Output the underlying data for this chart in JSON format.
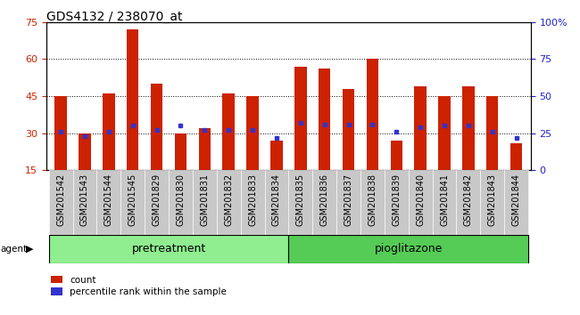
{
  "title": "GDS4132 / 238070_at",
  "samples": [
    "GSM201542",
    "GSM201543",
    "GSM201544",
    "GSM201545",
    "GSM201829",
    "GSM201830",
    "GSM201831",
    "GSM201832",
    "GSM201833",
    "GSM201834",
    "GSM201835",
    "GSM201836",
    "GSM201837",
    "GSM201838",
    "GSM201839",
    "GSM201840",
    "GSM201841",
    "GSM201842",
    "GSM201843",
    "GSM201844"
  ],
  "counts": [
    45,
    30,
    46,
    72,
    50,
    30,
    32,
    46,
    45,
    27,
    57,
    56,
    48,
    60,
    27,
    49,
    45,
    49,
    45,
    26
  ],
  "percentile_ranks": [
    26,
    23,
    26,
    30,
    27,
    30,
    27,
    27,
    27,
    22,
    32,
    31,
    31,
    31,
    26,
    29,
    30,
    30,
    26,
    22
  ],
  "bar_color": "#CC2200",
  "blue_color": "#3333CC",
  "ylim_left": [
    15,
    75
  ],
  "ylim_right": [
    0,
    100
  ],
  "yticks_left": [
    15,
    30,
    45,
    60,
    75
  ],
  "yticks_right": [
    0,
    25,
    50,
    75,
    100
  ],
  "bar_width": 0.5,
  "legend_count_label": "count",
  "legend_pct_label": "percentile rank within the sample",
  "tick_bg_color": "#c8c8c8",
  "pre_color": "#90EE90",
  "piog_color": "#55CC55",
  "group_border_color": "#000000",
  "title_fontsize": 10,
  "tick_fontsize": 7,
  "group_fontsize": 9,
  "legend_fontsize": 7.5,
  "left_tick_color": "#CC2200",
  "right_tick_color": "#2222CC"
}
